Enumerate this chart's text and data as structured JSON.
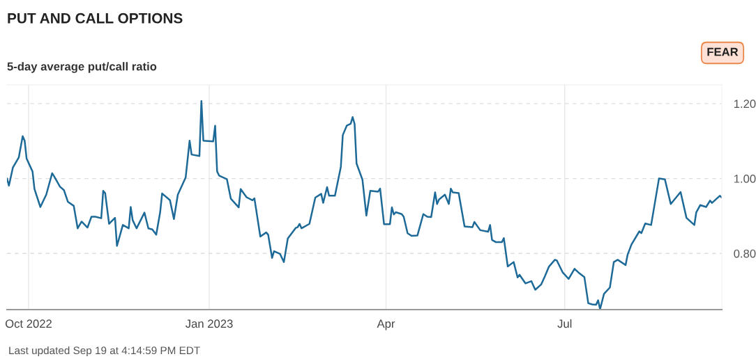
{
  "chart_data": {
    "type": "line",
    "title": "PUT AND CALL OPTIONS",
    "subtitle": "5-day average put/call ratio",
    "annotations": [
      "FEAR",
      "Last updated Sep 19 at 4:14:59 PM EDT"
    ],
    "x": [
      "2022-09-20",
      "2022-09-21",
      "2022-09-23",
      "2022-09-26",
      "2022-09-28",
      "2022-09-29",
      "2022-09-30",
      "2022-10-03",
      "2022-10-04",
      "2022-10-07",
      "2022-10-10",
      "2022-10-13",
      "2022-10-14",
      "2022-10-17",
      "2022-10-19",
      "2022-10-21",
      "2022-10-24",
      "2022-10-26",
      "2022-10-28",
      "2022-10-31",
      "2022-11-02",
      "2022-11-04",
      "2022-11-07",
      "2022-11-08",
      "2022-11-09",
      "2022-11-11",
      "2022-11-14",
      "2022-11-15",
      "2022-11-18",
      "2022-11-21",
      "2022-11-22",
      "2022-11-23",
      "2022-11-25",
      "2022-11-29",
      "2022-12-01",
      "2022-12-03",
      "2022-12-05",
      "2022-12-07",
      "2022-12-08",
      "2022-12-12",
      "2022-12-14",
      "2022-12-16",
      "2022-12-20",
      "2022-12-22",
      "2022-12-23",
      "2022-12-27",
      "2022-12-28",
      "2022-12-29",
      "2023-01-03",
      "2023-01-04",
      "2023-01-05",
      "2023-01-06",
      "2023-01-10",
      "2023-01-12",
      "2023-01-16",
      "2023-01-17",
      "2023-01-20",
      "2023-01-23",
      "2023-01-24",
      "2023-01-27",
      "2023-01-30",
      "2023-01-31",
      "2023-02-02",
      "2023-02-03",
      "2023-02-06",
      "2023-02-08",
      "2023-02-10",
      "2023-02-14",
      "2023-02-15",
      "2023-02-16",
      "2023-02-17",
      "2023-02-21",
      "2023-02-24",
      "2023-02-27",
      "2023-02-28",
      "2023-03-02",
      "2023-03-03",
      "2023-03-06",
      "2023-03-09",
      "2023-03-10",
      "2023-03-12",
      "2023-03-14",
      "2023-03-15",
      "2023-03-16",
      "2023-03-17",
      "2023-03-20",
      "2023-03-22",
      "2023-03-24",
      "2023-03-28",
      "2023-03-29",
      "2023-03-31",
      "2023-04-03",
      "2023-04-04",
      "2023-04-05",
      "2023-04-06",
      "2023-04-09",
      "2023-04-10",
      "2023-04-12",
      "2023-04-14",
      "2023-04-17",
      "2023-04-20",
      "2023-04-22",
      "2023-04-24",
      "2023-04-26",
      "2023-04-27",
      "2023-04-28",
      "2023-05-01",
      "2023-05-03",
      "2023-05-04",
      "2023-05-05",
      "2023-05-08",
      "2023-05-11",
      "2023-05-15",
      "2023-05-16",
      "2023-05-19",
      "2023-05-23",
      "2023-05-24",
      "2023-05-25",
      "2023-05-27",
      "2023-05-30",
      "2023-05-31",
      "2023-06-02",
      "2023-06-05",
      "2023-06-07",
      "2023-06-08",
      "2023-06-11",
      "2023-06-14",
      "2023-06-16",
      "2023-06-19",
      "2023-06-21",
      "2023-06-23",
      "2023-06-26",
      "2023-06-27",
      "2023-06-30",
      "2023-07-03",
      "2023-07-06",
      "2023-07-08",
      "2023-07-11",
      "2023-07-13",
      "2023-07-15",
      "2023-07-17",
      "2023-07-18",
      "2023-07-19",
      "2023-07-21",
      "2023-07-24",
      "2023-07-26",
      "2023-07-28",
      "2023-08-01",
      "2023-08-02",
      "2023-08-04",
      "2023-08-08",
      "2023-08-09",
      "2023-08-11",
      "2023-08-14",
      "2023-08-18",
      "2023-08-21",
      "2023-08-24",
      "2023-08-29",
      "2023-09-01",
      "2023-09-05",
      "2023-09-06",
      "2023-09-08",
      "2023-09-11",
      "2023-09-13",
      "2023-09-14",
      "2023-09-18",
      "2023-09-19"
    ],
    "series": [
      {
        "color": "#1d6a98",
        "values": [
          1.0,
          0.981,
          1.029,
          1.056,
          1.113,
          1.101,
          1.053,
          1.019,
          0.972,
          0.924,
          0.957,
          1.014,
          1.006,
          0.978,
          0.969,
          0.938,
          0.927,
          0.867,
          0.885,
          0.869,
          0.898,
          0.898,
          0.894,
          0.967,
          0.961,
          0.879,
          0.895,
          0.82,
          0.876,
          0.867,
          0.924,
          0.889,
          0.867,
          0.909,
          0.867,
          0.864,
          0.85,
          0.91,
          0.96,
          0.942,
          0.892,
          0.957,
          1.003,
          1.101,
          1.064,
          1.06,
          1.207,
          1.101,
          1.099,
          1.141,
          1.019,
          1.008,
          0.998,
          0.946,
          0.923,
          0.972,
          0.95,
          0.942,
          0.947,
          0.845,
          0.856,
          0.85,
          0.788,
          0.806,
          0.799,
          0.777,
          0.84,
          0.868,
          0.87,
          0.879,
          0.867,
          0.879,
          0.949,
          0.959,
          0.935,
          0.977,
          0.954,
          0.954,
          1.031,
          1.116,
          1.141,
          1.146,
          1.164,
          1.146,
          1.04,
          0.997,
          0.901,
          0.967,
          0.965,
          0.973,
          0.878,
          0.878,
          0.923,
          0.904,
          0.91,
          0.905,
          0.898,
          0.854,
          0.847,
          0.848,
          0.905,
          0.898,
          0.897,
          0.963,
          0.932,
          0.944,
          0.957,
          0.932,
          0.973,
          0.963,
          0.961,
          0.872,
          0.87,
          0.884,
          0.862,
          0.858,
          0.876,
          0.836,
          0.83,
          0.83,
          0.841,
          0.765,
          0.777,
          0.736,
          0.743,
          0.72,
          0.726,
          0.703,
          0.717,
          0.74,
          0.765,
          0.783,
          0.781,
          0.749,
          0.732,
          0.759,
          0.749,
          0.737,
          0.667,
          0.664,
          0.663,
          0.675,
          0.651,
          0.692,
          0.709,
          0.777,
          0.783,
          0.769,
          0.796,
          0.824,
          0.859,
          0.854,
          0.88,
          0.876,
          1.0,
          0.998,
          0.932,
          0.964,
          0.895,
          0.876,
          0.91,
          0.929,
          0.924,
          0.941,
          0.935,
          0.954,
          0.949
        ]
      }
    ],
    "xlim": [
      "2022-09-20",
      "2023-09-19"
    ],
    "xticks": [
      {
        "value": "2022-10-01",
        "label": "Oct 2022"
      },
      {
        "value": "2023-01-01",
        "label": "Jan 2023"
      },
      {
        "value": "2023-04-01",
        "label": "Apr"
      },
      {
        "value": "2023-07-01",
        "label": "Jul"
      }
    ],
    "ylim": [
      0.65,
      1.25
    ],
    "yticks": [
      {
        "value": 0.8,
        "label": "0.80"
      },
      {
        "value": 1.0,
        "label": "1.00"
      },
      {
        "value": 1.2,
        "label": "1.20"
      }
    ],
    "grid": true
  }
}
